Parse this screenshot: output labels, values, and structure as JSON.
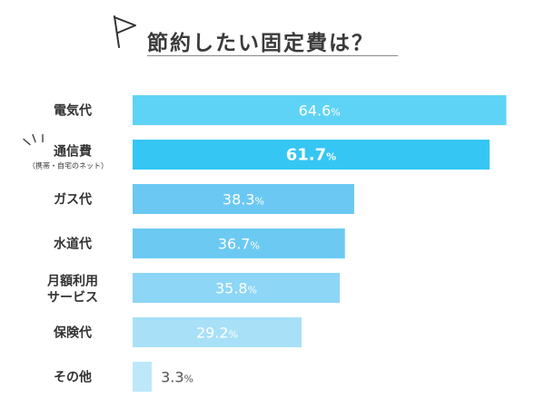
{
  "chart_data": {
    "type": "bar",
    "orientation": "horizontal",
    "title": "節約したい固定費は？",
    "categories": [
      [
        "電気代"
      ],
      [
        "通信費",
        "（携帯・自宅のネット）"
      ],
      [
        "ガス代"
      ],
      [
        "水道代"
      ],
      [
        "月額利用",
        "サービス"
      ],
      [
        "保険代"
      ],
      [
        "その他"
      ]
    ],
    "values": [
      64.6,
      61.7,
      38.3,
      36.7,
      35.8,
      29.2,
      3.3
    ],
    "value_labels": [
      "64.6",
      "61.7",
      "38.3",
      "36.7",
      "35.8",
      "29.2",
      "3.3"
    ],
    "unit": "%",
    "highlight_index": 1,
    "colors": [
      "#5fd3f5",
      "#35c6f4",
      "#6bc8f3",
      "#6ccaf2",
      "#8dd6f6",
      "#a8e0f8",
      "#bde8fa"
    ],
    "xlim": [
      0,
      65
    ],
    "grid": false
  }
}
